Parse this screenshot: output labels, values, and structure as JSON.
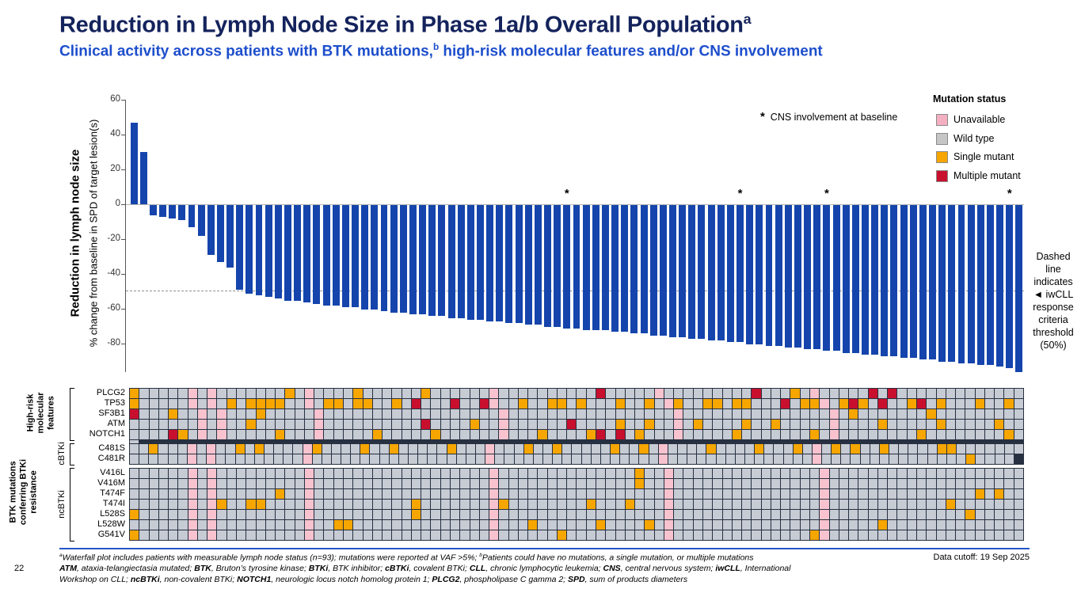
{
  "slide": {
    "title": "Reduction in Lymph Node Size in Phase 1a/b Overall Population",
    "title_sup": "a",
    "subtitle_part1": "Clinical activity across patients with BTK mutations,",
    "subtitle_sup": "b",
    "subtitle_part2": " high-risk molecular features and/or CNS involvement",
    "page_number": "22",
    "data_cutoff": "Data cutoff: 19 Sep 2025"
  },
  "chart_data": {
    "type": "bar",
    "title": "",
    "ylabel_bold": "Reduction in lymph node size",
    "ylabel": "% change from baseline in SPD of target lesion(s)",
    "ylim": [
      -100,
      60
    ],
    "yticks": [
      60,
      40,
      20,
      0,
      -20,
      -40,
      -60,
      -80
    ],
    "grid": false,
    "bar_color": "#1545ac",
    "values": [
      47,
      30,
      -6,
      -7,
      -8,
      -9,
      -13,
      -18,
      -29,
      -33,
      -36,
      -49,
      -51,
      -52,
      -53,
      -54,
      -55,
      -55,
      -56,
      -57,
      -58,
      -58,
      -59,
      -59,
      -60,
      -60,
      -61,
      -62,
      -62,
      -63,
      -63,
      -64,
      -64,
      -65,
      -65,
      -66,
      -66,
      -67,
      -67,
      -68,
      -68,
      -69,
      -69,
      -70,
      -70,
      -71,
      -71,
      -72,
      -72,
      -72,
      -73,
      -73,
      -74,
      -74,
      -75,
      -75,
      -76,
      -76,
      -77,
      -77,
      -78,
      -78,
      -79,
      -79,
      -80,
      -80,
      -81,
      -81,
      -82,
      -82,
      -83,
      -83,
      -84,
      -84,
      -85,
      -85,
      -86,
      -86,
      -87,
      -87,
      -88,
      -88,
      -89,
      -89,
      -90,
      -90,
      -91,
      -91,
      -92,
      -92,
      -93,
      -94,
      -96
    ],
    "asterisk_bars": [
      46,
      64,
      73,
      92
    ],
    "asterisk_glyph": "*",
    "asterisk_note": "CNS involvement at baseline",
    "threshold_value": -50,
    "threshold_note_lines": [
      "Dashed",
      "line",
      "indicates",
      "◄ iwCLL",
      "response",
      "criteria",
      "threshold",
      "(50%)"
    ]
  },
  "legend": {
    "title": "Mutation status",
    "items": [
      {
        "label": "Unavailable",
        "color": "#f4afc1"
      },
      {
        "label": "Wild type",
        "color": "#c6c6c6"
      },
      {
        "label": "Single mutant",
        "color": "#f7a600"
      },
      {
        "label": "Multiple mutant",
        "color": "#c8102e"
      }
    ]
  },
  "heatmap": {
    "cell_colors": {
      "G": "#c6cbd4",
      "O": "#f7a600",
      "R": "#c8102e",
      "P": "#f8c3ce"
    },
    "cell_key": {
      "G": "Wild type",
      "O": "Single mutant",
      "R": "Multiple mutant",
      "P": "Unavailable"
    },
    "outer_label": "BTK mutations\nconferring BTKi\nresistance",
    "blocks": [
      {
        "group_label": "High-risk\nmolecular\nfeatures",
        "sub_label": "",
        "rows": [
          {
            "gene": "PLCG2",
            "cells": "OGGGGGPGPGGGGGGGOGPGGGGOGGGGGGOGGGGGGPGGGGGGGGGGRGGGGGPGGGGGGGGGRGGGOGPGGGGGRGRGGGGGGGGGGGGG"
          },
          {
            "gene": "TP53",
            "cells": "OGGGGGPGPGOGOOOOGGPGOOGOOGGOGRGGGRGGRPGGOGGOOGOGGGOGGOGPOGGOOGOOGGGRGOOPGOROGRGGORGOGGGOGGOGR"
          },
          {
            "gene": "SF3B1",
            "cells": "GGGOGGPGPGGGOGGGGGPGGGGGGGGGGGGGGGGGGPGGGGGGGGGGGGGGGGGPGGGGGGGGGGGGGGGPGOGGGGGGGOGGGGGGGGGG"
          },
          {
            "gene": "ATM",
            "cells": "GGGGGGPGPGGOGGGGGGPGGGGGGGGGGRGGGGOGGPGGGGGGRGGGGOGGOGGPGOGGGGOGGOGGGGGPGGGGOGGGGGOGGGGGOGGG"
          },
          {
            "gene": "NOTCH1",
            "cells": "GGGROGPGPGGGGGOGGGPGGGGGOGGGGGOGGGGGGPGGGOGGGGORGRGOGGGPGGGGGOGGGGGGGOGPGGGGGGGGOGGGGGGGGOGG"
          }
        ]
      },
      {
        "group_label": "",
        "sub_label": "cBTKi",
        "rows": [
          {
            "gene": "C481S",
            "cells": "GGOGGGPGPGGOGOGGGGPOGGGGOGGOGGGGGOGGGPGGGOGGOGGGGGOGGOGPGGGGOGGGGOGGGOGPGOGOGGOGGGGGOOGGGGGGG"
          },
          {
            "gene": "C481R",
            "cells": "GGGGGGPGPGGGGGGGGGPGGGGGGGGGGGGGGGGGGPGGGGGGGGGGGGGGGGGPGGGGGGGGGGGGGGGPGGGGGGGGGGGGGGGOGGGG"
          }
        ]
      },
      {
        "group_label": "",
        "sub_label": "ncBTKi",
        "rows": [
          {
            "gene": "V416L",
            "cells": "GGGGGGPGPGGGGGGGGGPGGGGGGGGGGGGGGGGGGPGGGGGGGGGGGGGGOGGPGGGGGGGGGGGGGGGPGGGGGGGGGGGGGGGGGGGG"
          },
          {
            "gene": "V416M",
            "cells": "GGGGGGPGPGGGGGGGGGPGGGGGGGGGGGGGGGGGGPGGGGGGGGGGGGGGOGGPGGGGGGGGGGGGGGGPGGGGGGGGGGGGGGGGGGGG"
          },
          {
            "gene": "T474F",
            "cells": "GGGGGGPGPGGGGGGOGGPGGGGGGGGGGGGGGGGGGPGGGGGGGGGGGGGGGGGPGGGGGGGGGGGGGGGPGGGGGGGGGGGGGGGOGOGG"
          },
          {
            "gene": "T474I",
            "cells": "GGGGGGPGPOGGOOGGGGPGGGGGGGGGGOGGGGGGGPOGGGGGGGGOGGGOGGGPGGGGGGGGGGGGGGGPGGGGGGGGGGGGOGGGGGGG"
          },
          {
            "gene": "L528S",
            "cells": "OGGGGGPGPGGGGGGGGGPGGGGGGGGGGOGGGGGGGPGGGGGGGGGGGGGGGGGPGGGGGGGGGGGGGGGPGGGGGGGGGGGGGGOGGGGG"
          },
          {
            "gene": "L528W",
            "cells": "GGGGGGPGPGGGGGGGGGPGGOOGGGGGGGGGGGGGGPGGGOGGGGGGOGGGGOGPGGGGGGGGGGGGGGGPGGGGGOGGGGGGGGGGGGGG"
          },
          {
            "gene": "G541V",
            "cells": "OGGGGGPGPGGGGGGGGGPGGGGGGGGGGGGGGGGGGPGGGGGGOGGGGGGGGGGPGGGGGGGGGGGGGGOPGGGGGGGGGGGGGGGGGGGG"
          }
        ]
      }
    ]
  },
  "footnotes": {
    "line1": [
      {
        "t": "a",
        "sup": true
      },
      {
        "t": "Waterfall plot includes patients with measurable lymph node status (n=93); mutations were reported at VAF >5%; "
      },
      {
        "t": "b",
        "sup": true
      },
      {
        "t": "Patients could have no mutations, a single mutation, or multiple mutations"
      }
    ],
    "line2": [
      {
        "t": "ATM",
        "b": true
      },
      {
        "t": ", ataxia-telangiectasia mutated; "
      },
      {
        "t": "BTK",
        "b": true
      },
      {
        "t": ", Bruton’s tyrosine kinase; "
      },
      {
        "t": "BTKi",
        "b": true
      },
      {
        "t": ", BTK inhibitor; "
      },
      {
        "t": "cBTKi",
        "b": true
      },
      {
        "t": ", covalent BTKi; "
      },
      {
        "t": "CLL",
        "b": true
      },
      {
        "t": ", chronic lymphocytic leukemia; "
      },
      {
        "t": "CNS",
        "b": true
      },
      {
        "t": ", central nervous system; "
      },
      {
        "t": "iwCLL",
        "b": true
      },
      {
        "t": ", International"
      }
    ],
    "line3": [
      {
        "t": "Workshop on CLL; "
      },
      {
        "t": "ncBTKi",
        "b": true
      },
      {
        "t": ", non-covalent BTKi; "
      },
      {
        "t": "NOTCH1",
        "b": true
      },
      {
        "t": ", neurologic locus notch homolog protein 1; "
      },
      {
        "t": "PLCG2",
        "b": true
      },
      {
        "t": ", phospholipase C gamma 2; "
      },
      {
        "t": "SPD",
        "b": true
      },
      {
        "t": ", sum of products diameters"
      }
    ]
  }
}
